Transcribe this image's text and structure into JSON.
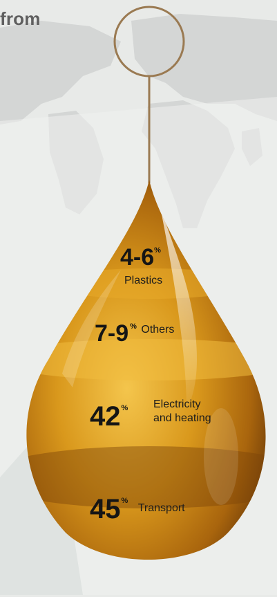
{
  "header": {
    "text": "from"
  },
  "colors": {
    "oil_dark": "#6b3a08",
    "oil_mid": "#b87510",
    "oil_light": "#f6c84a",
    "ring": "#9a7a52"
  },
  "segments": [
    {
      "value": "4-6",
      "percent": "%",
      "label": "Plastics"
    },
    {
      "value": "7-9",
      "percent": "%",
      "label": "Others"
    },
    {
      "value": "42",
      "percent": "%",
      "label_line1": "Electricity",
      "label_line2": "and heating"
    },
    {
      "value": "45",
      "percent": "%",
      "label": "Transport"
    }
  ]
}
